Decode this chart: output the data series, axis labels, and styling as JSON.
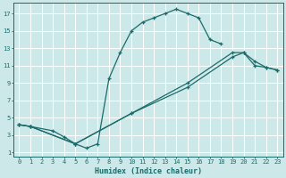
{
  "xlabel": "Humidex (Indice chaleur)",
  "bg_color": "#cde8e8",
  "line_color": "#1a6b6b",
  "grid_color": "#b8d8d8",
  "xlim": [
    -0.5,
    23.5
  ],
  "ylim": [
    0.5,
    18.2
  ],
  "xticks": [
    0,
    1,
    2,
    3,
    4,
    5,
    6,
    7,
    8,
    9,
    10,
    11,
    12,
    13,
    14,
    15,
    16,
    17,
    18,
    19,
    20,
    21,
    22,
    23
  ],
  "yticks": [
    1,
    3,
    5,
    7,
    9,
    11,
    13,
    15,
    17
  ],
  "line1_x": [
    0,
    1,
    3,
    4,
    5,
    6,
    7,
    8,
    9,
    10,
    11,
    12,
    13,
    14,
    15,
    16,
    17,
    18
  ],
  "line1_y": [
    4.2,
    4.0,
    3.5,
    2.8,
    2.0,
    1.5,
    2.0,
    9.5,
    12.5,
    15.0,
    16.0,
    16.5,
    17.0,
    17.5,
    17.0,
    16.5,
    14.0,
    13.5
  ],
  "line2_x": [
    0,
    1,
    5,
    10,
    15,
    19,
    20,
    21,
    22,
    23
  ],
  "line2_y": [
    4.2,
    4.0,
    2.0,
    5.5,
    8.5,
    12.0,
    12.5,
    11.5,
    10.8,
    10.5
  ],
  "line3_x": [
    0,
    1,
    5,
    10,
    15,
    19,
    20,
    21,
    22,
    23
  ],
  "line3_y": [
    4.2,
    4.0,
    2.0,
    5.5,
    9.0,
    12.5,
    12.5,
    11.0,
    10.8,
    10.5
  ]
}
